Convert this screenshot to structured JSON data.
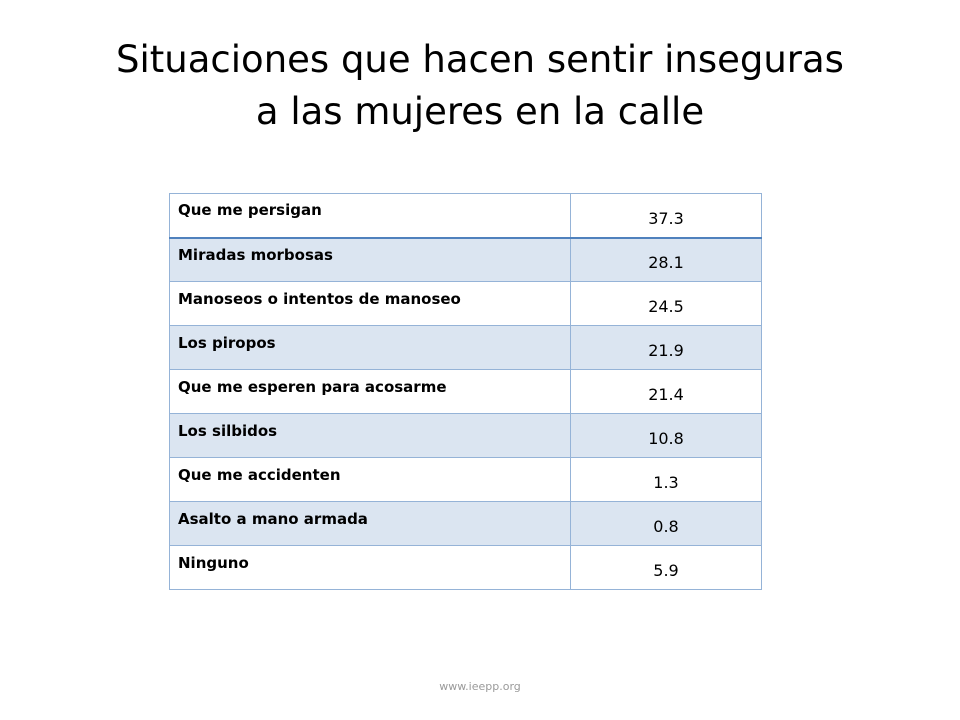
{
  "title": {
    "line1": "Situaciones que hacen sentir inseguras",
    "line2": "a las mujeres en la calle"
  },
  "table": {
    "rows": [
      {
        "label": "Que me persigan",
        "value": "37.3"
      },
      {
        "label": "Miradas morbosas",
        "value": "28.1"
      },
      {
        "label": "Manoseos o intentos de manoseo",
        "value": "24.5"
      },
      {
        "label": "Los piropos",
        "value": "21.9"
      },
      {
        "label": "Que me esperen para acosarme",
        "value": "21.4"
      },
      {
        "label": "Los silbidos",
        "value": "10.8"
      },
      {
        "label": "Que me accidenten",
        "value": "1.3"
      },
      {
        "label": "Asalto a mano armada",
        "value": "0.8"
      },
      {
        "label": "Ninguno",
        "value": "5.9"
      }
    ]
  },
  "footer": {
    "url": "www.ieepp.org"
  },
  "colors": {
    "border": "#95b3d7",
    "header_rule": "#4f81bd",
    "band": "#dbe5f1"
  }
}
